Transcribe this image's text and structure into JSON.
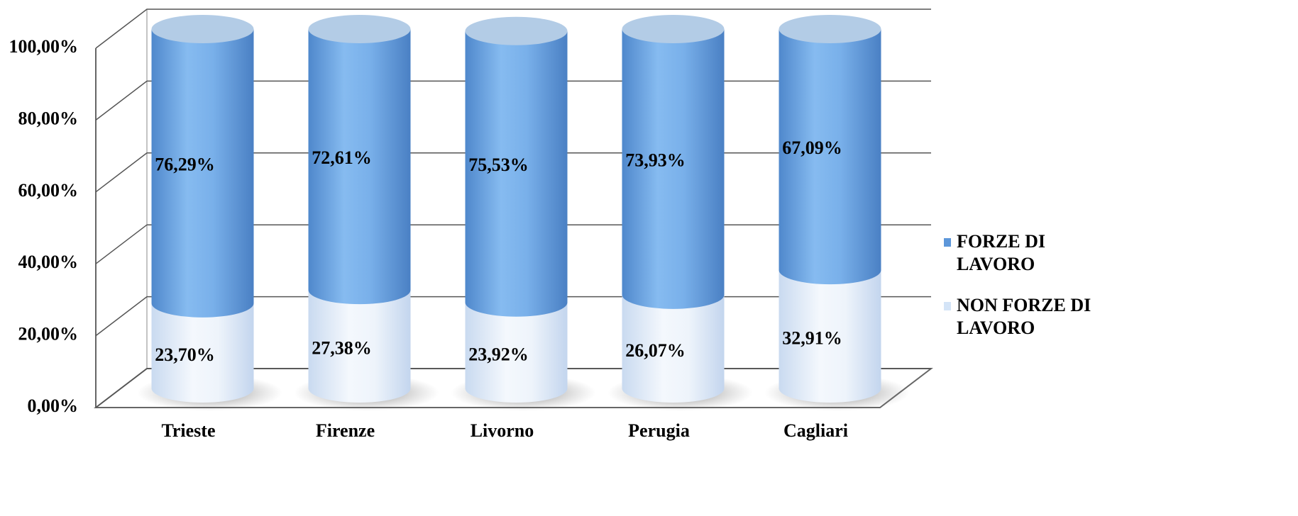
{
  "chart_data": {
    "type": "stacked-cylinder",
    "categories": [
      "Trieste",
      "Firenze",
      "Livorno",
      "Perugia",
      "Cagliari"
    ],
    "series": [
      {
        "name": "NON FORZE DI LAVORO",
        "color": "#dce9f8",
        "values": [
          23.7,
          27.38,
          23.92,
          26.07,
          32.91
        ],
        "value_labels": [
          "23,70%",
          "27,38%",
          "23,92%",
          "26,07%",
          "32,91%"
        ]
      },
      {
        "name": "FORZE DI LAVORO",
        "color": "#6fa6e2",
        "values": [
          76.29,
          72.61,
          75.53,
          73.93,
          67.09
        ],
        "value_labels": [
          "76,29%",
          "72,61%",
          "75,53%",
          "73,93%",
          "67,09%"
        ]
      }
    ],
    "ylim": [
      0,
      100
    ],
    "yticks": [
      {
        "value": 0,
        "label": "0,00%"
      },
      {
        "value": 20,
        "label": "20,00%"
      },
      {
        "value": 40,
        "label": "40,00%"
      },
      {
        "value": 60,
        "label": "60,00%"
      },
      {
        "value": 80,
        "label": "80,00%"
      },
      {
        "value": 100,
        "label": "100,00%"
      }
    ],
    "grid": true,
    "legend": "right"
  }
}
